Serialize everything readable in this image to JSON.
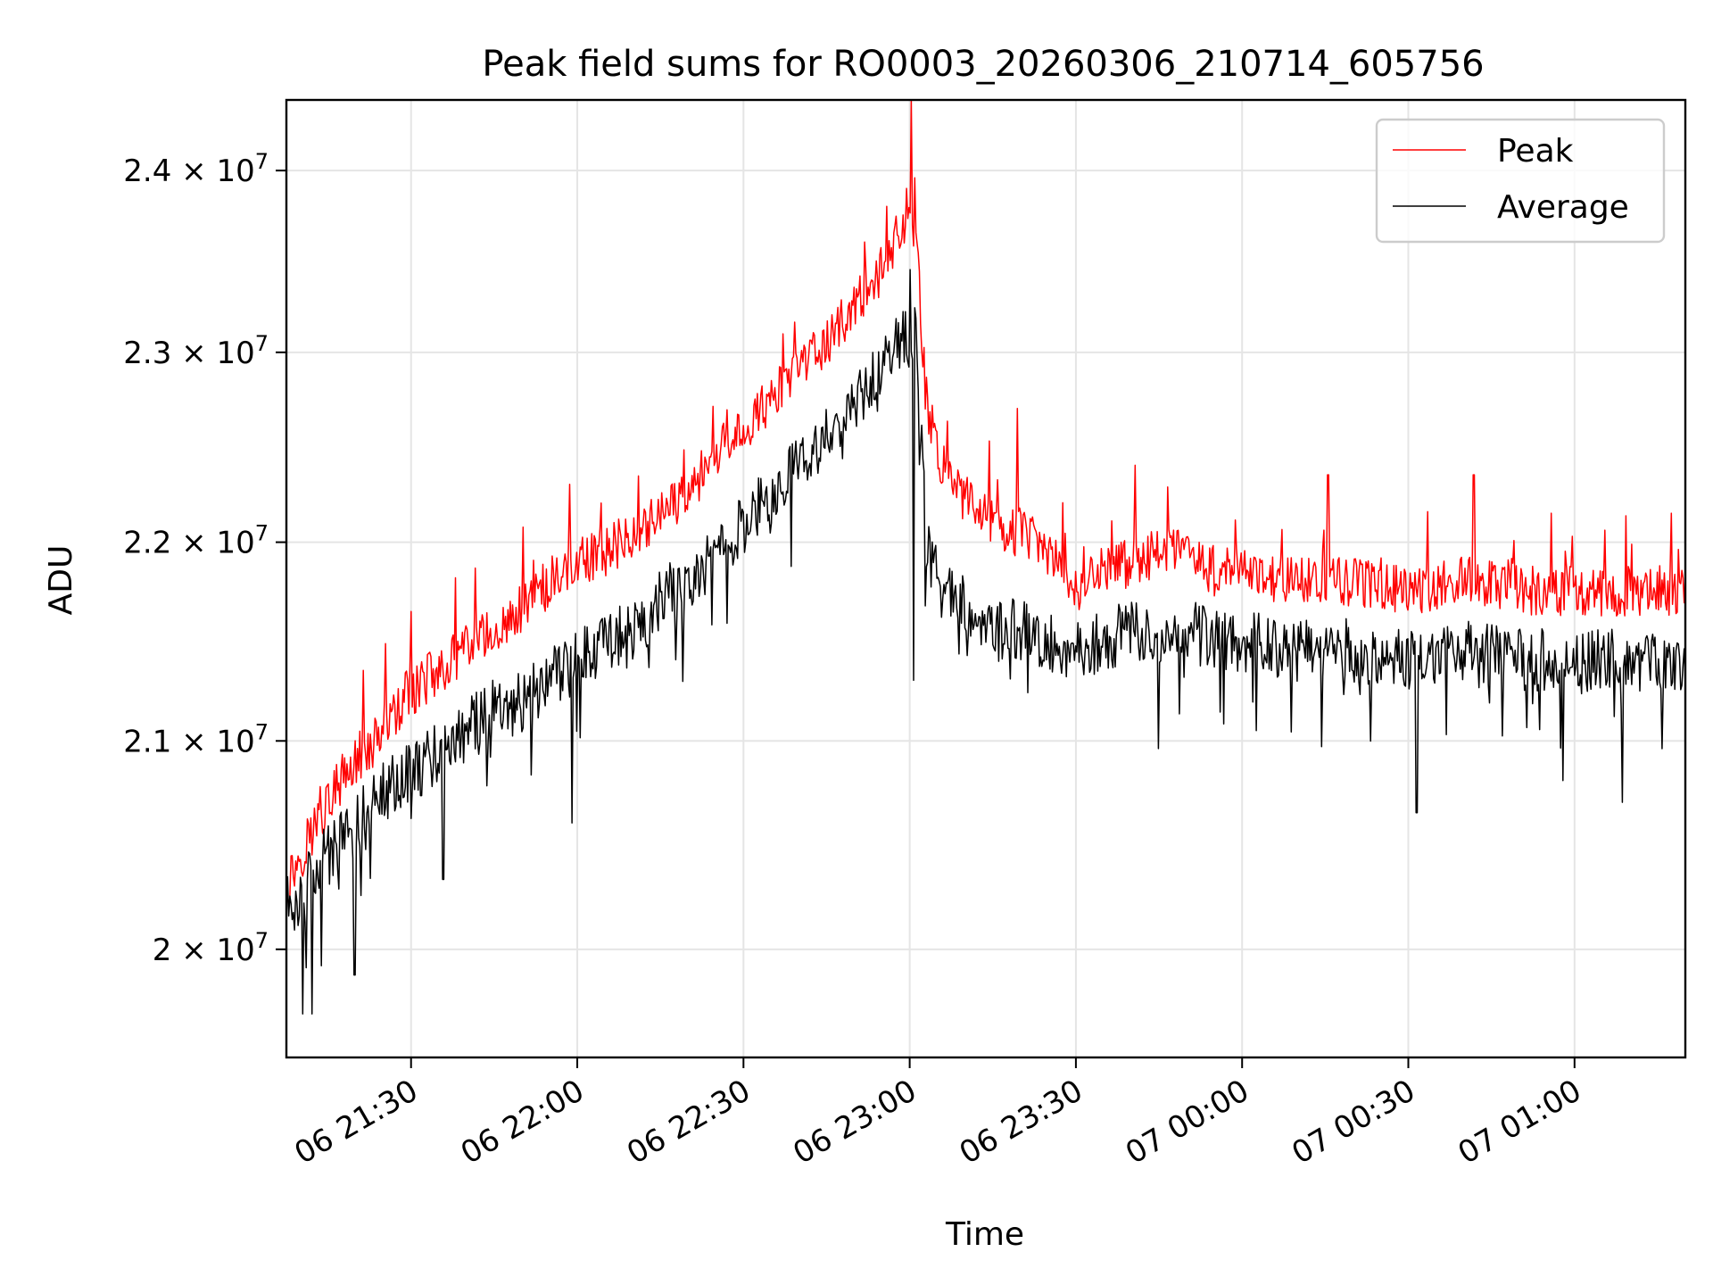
{
  "chart_data": {
    "type": "line",
    "title": "Peak field sums for RO0003_20260306_210714_605756",
    "xlabel": "Time",
    "ylabel": "ADU",
    "y_scale": "log",
    "xlim_minutes": [
      -22.5,
      230
    ],
    "ylim": [
      19500000,
      24400000
    ],
    "grid": true,
    "legend_location": "upper right",
    "x_ticks": [
      {
        "minute": 0,
        "label": "06 21:30"
      },
      {
        "minute": 30,
        "label": "06 22:00"
      },
      {
        "minute": 60,
        "label": "06 22:30"
      },
      {
        "minute": 90,
        "label": "06 23:00"
      },
      {
        "minute": 120,
        "label": "06 23:30"
      },
      {
        "minute": 150,
        "label": "07 00:00"
      },
      {
        "minute": 180,
        "label": "07 00:30"
      },
      {
        "minute": 210,
        "label": "07 01:00"
      }
    ],
    "y_ticks": [
      {
        "value": 20000000,
        "mant": "2",
        "label": "2 × 10^7"
      },
      {
        "value": 21000000,
        "mant": "2.1",
        "label": "2.1 × 10^7"
      },
      {
        "value": 22000000,
        "mant": "2.2",
        "label": "2.2 × 10^7"
      },
      {
        "value": 23000000,
        "mant": "2.3",
        "label": "2.3 × 10^7"
      },
      {
        "value": 24000000,
        "mant": "2.4",
        "label": "2.4 × 10^7"
      }
    ],
    "series": [
      {
        "name": "Peak",
        "color": "#ff0000",
        "x_minutes": [
          -22.5,
          -20,
          -15,
          -10,
          -5,
          0,
          5,
          10,
          15,
          20,
          25,
          30,
          35,
          40,
          45,
          50,
          55,
          60,
          65,
          70,
          75,
          80,
          85,
          88,
          91,
          93,
          96,
          99,
          102,
          105,
          110,
          115,
          120,
          125,
          130,
          135,
          140,
          145,
          150,
          160,
          170,
          180,
          190,
          200,
          210,
          220,
          230
        ],
        "values": [
          20300000,
          20450000,
          20700000,
          20900000,
          21050000,
          21250000,
          21350000,
          21450000,
          21550000,
          21650000,
          21800000,
          21900000,
          21950000,
          22050000,
          22150000,
          22250000,
          22450000,
          22600000,
          22750000,
          22900000,
          23050000,
          23250000,
          23450000,
          23650000,
          23700000,
          22700000,
          22400000,
          22250000,
          22150000,
          22100000,
          22050000,
          21950000,
          21750000,
          21850000,
          21900000,
          21950000,
          21950000,
          21850000,
          21850000,
          21800000,
          21800000,
          21750000,
          21800000,
          21750000,
          21750000,
          21750000,
          21750000
        ],
        "spikes": [
          {
            "minute": 90.3,
            "value": 24400000
          },
          {
            "minute": 89.5,
            "value": 23900000
          },
          {
            "minute": 85.8,
            "value": 23800000
          },
          {
            "minute": 28.7,
            "value": 22300000
          },
          {
            "minute": 51.5,
            "value": 22300000
          },
          {
            "minute": 67.2,
            "value": 23100000
          },
          {
            "minute": 130.7,
            "value": 22400000
          },
          {
            "minute": 165.5,
            "value": 22350000
          },
          {
            "minute": 191.8,
            "value": 22350000
          },
          {
            "minute": 227.5,
            "value": 22150000
          },
          {
            "minute": 109.4,
            "value": 22700000
          },
          {
            "minute": 96.2,
            "value": 22500000
          }
        ]
      },
      {
        "name": "Average",
        "color": "#000000",
        "x_minutes": [
          -22.5,
          -20,
          -15,
          -10,
          -5,
          0,
          5,
          10,
          15,
          20,
          25,
          30,
          35,
          40,
          45,
          50,
          55,
          60,
          65,
          70,
          75,
          80,
          85,
          88,
          91,
          93,
          96,
          99,
          102,
          105,
          110,
          115,
          120,
          125,
          130,
          135,
          140,
          145,
          150,
          160,
          170,
          180,
          190,
          200,
          210,
          220,
          230
        ],
        "values": [
          20200000,
          20250000,
          20450000,
          20600000,
          20750000,
          20850000,
          20950000,
          21050000,
          21150000,
          21200000,
          21300000,
          21400000,
          21500000,
          21550000,
          21700000,
          21800000,
          21950000,
          22100000,
          22250000,
          22400000,
          22550000,
          22750000,
          22900000,
          23050000,
          23100000,
          22000000,
          21750000,
          21700000,
          21600000,
          21550000,
          21550000,
          21500000,
          21450000,
          21500000,
          21550000,
          21550000,
          21550000,
          21500000,
          21500000,
          21450000,
          21450000,
          21400000,
          21450000,
          21400000,
          21400000,
          21400000,
          21400000
        ],
        "spikes": [
          {
            "minute": 90.1,
            "value": 23450000
          },
          {
            "minute": -19.5,
            "value": 19700000
          },
          {
            "minute": -17.8,
            "value": 19700000
          },
          {
            "minute": -10.2,
            "value": 19880000
          },
          {
            "minute": 90.7,
            "value": 21300000
          },
          {
            "minute": 181.5,
            "value": 20650000
          },
          {
            "minute": 218.6,
            "value": 20700000
          },
          {
            "minute": 5.8,
            "value": 20330000
          },
          {
            "minute": 29.0,
            "value": 20600000
          }
        ]
      }
    ]
  }
}
